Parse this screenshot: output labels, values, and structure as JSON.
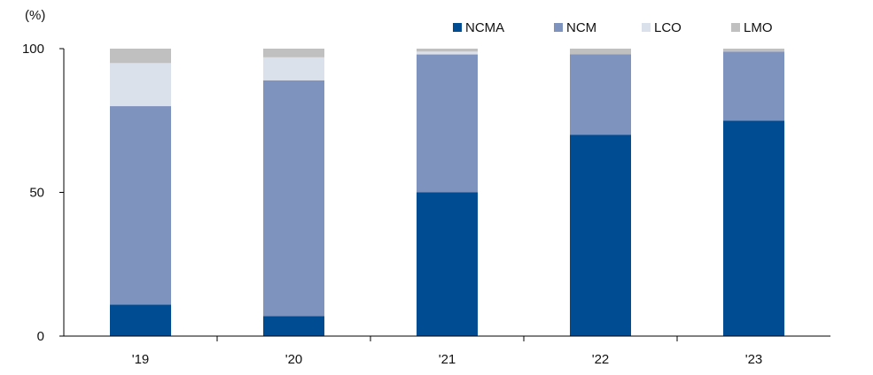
{
  "chart_data": {
    "type": "bar",
    "stacked": true,
    "categories": [
      "'19",
      "'20",
      "'21",
      "'22",
      "'23"
    ],
    "series": [
      {
        "name": "NCMA",
        "color": "#004c93",
        "values": [
          11,
          7,
          50,
          70,
          75
        ]
      },
      {
        "name": "NCM",
        "color": "#7f93bf",
        "values": [
          69,
          82,
          48,
          28,
          24
        ]
      },
      {
        "name": "LCO",
        "color": "#dae1ea",
        "values": [
          15,
          8,
          1,
          0,
          0
        ]
      },
      {
        "name": "LMO",
        "color": "#c0c0c0",
        "values": [
          5,
          3,
          1,
          2,
          1
        ]
      }
    ],
    "ylabel": "(%)",
    "ylim": [
      0,
      100
    ],
    "yticks": [
      0,
      50,
      100
    ],
    "grid": false,
    "legend_position": "top-right"
  }
}
